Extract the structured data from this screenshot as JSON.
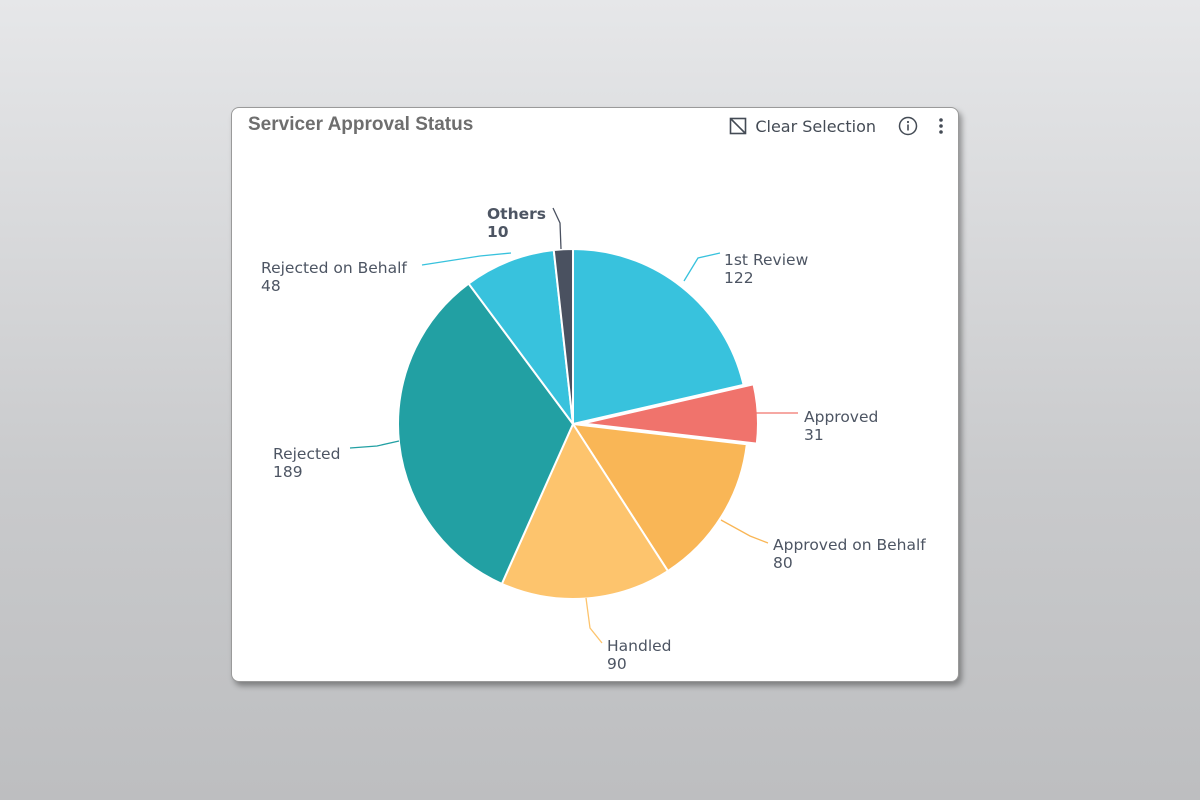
{
  "card": {
    "title": "Servicer Approval Status",
    "clear_selection_label": "Clear Selection",
    "icons": {
      "clear": "clear-selection-icon",
      "info": "info-icon",
      "more": "more-vertical-icon"
    }
  },
  "chart_data": {
    "type": "pie",
    "title": "Servicer Approval Status",
    "slices": [
      {
        "label": "1st Review",
        "value": 122,
        "color": "#38c2dd",
        "selected": false,
        "bold": false
      },
      {
        "label": "Approved",
        "value": 31,
        "color": "#f0736c",
        "selected": true,
        "bold": false
      },
      {
        "label": "Approved on Behalf",
        "value": 80,
        "color": "#f9b656",
        "selected": false,
        "bold": false
      },
      {
        "label": "Handled",
        "value": 90,
        "color": "#fdc46d",
        "selected": false,
        "bold": false
      },
      {
        "label": "Rejected",
        "value": 189,
        "color": "#22a0a3",
        "selected": false,
        "bold": false
      },
      {
        "label": "Rejected on Behalf",
        "value": 48,
        "color": "#38c2dd",
        "selected": false,
        "bold": false
      },
      {
        "label": "Others",
        "value": 10,
        "color": "#4a5160",
        "selected": false,
        "bold": true
      }
    ]
  }
}
